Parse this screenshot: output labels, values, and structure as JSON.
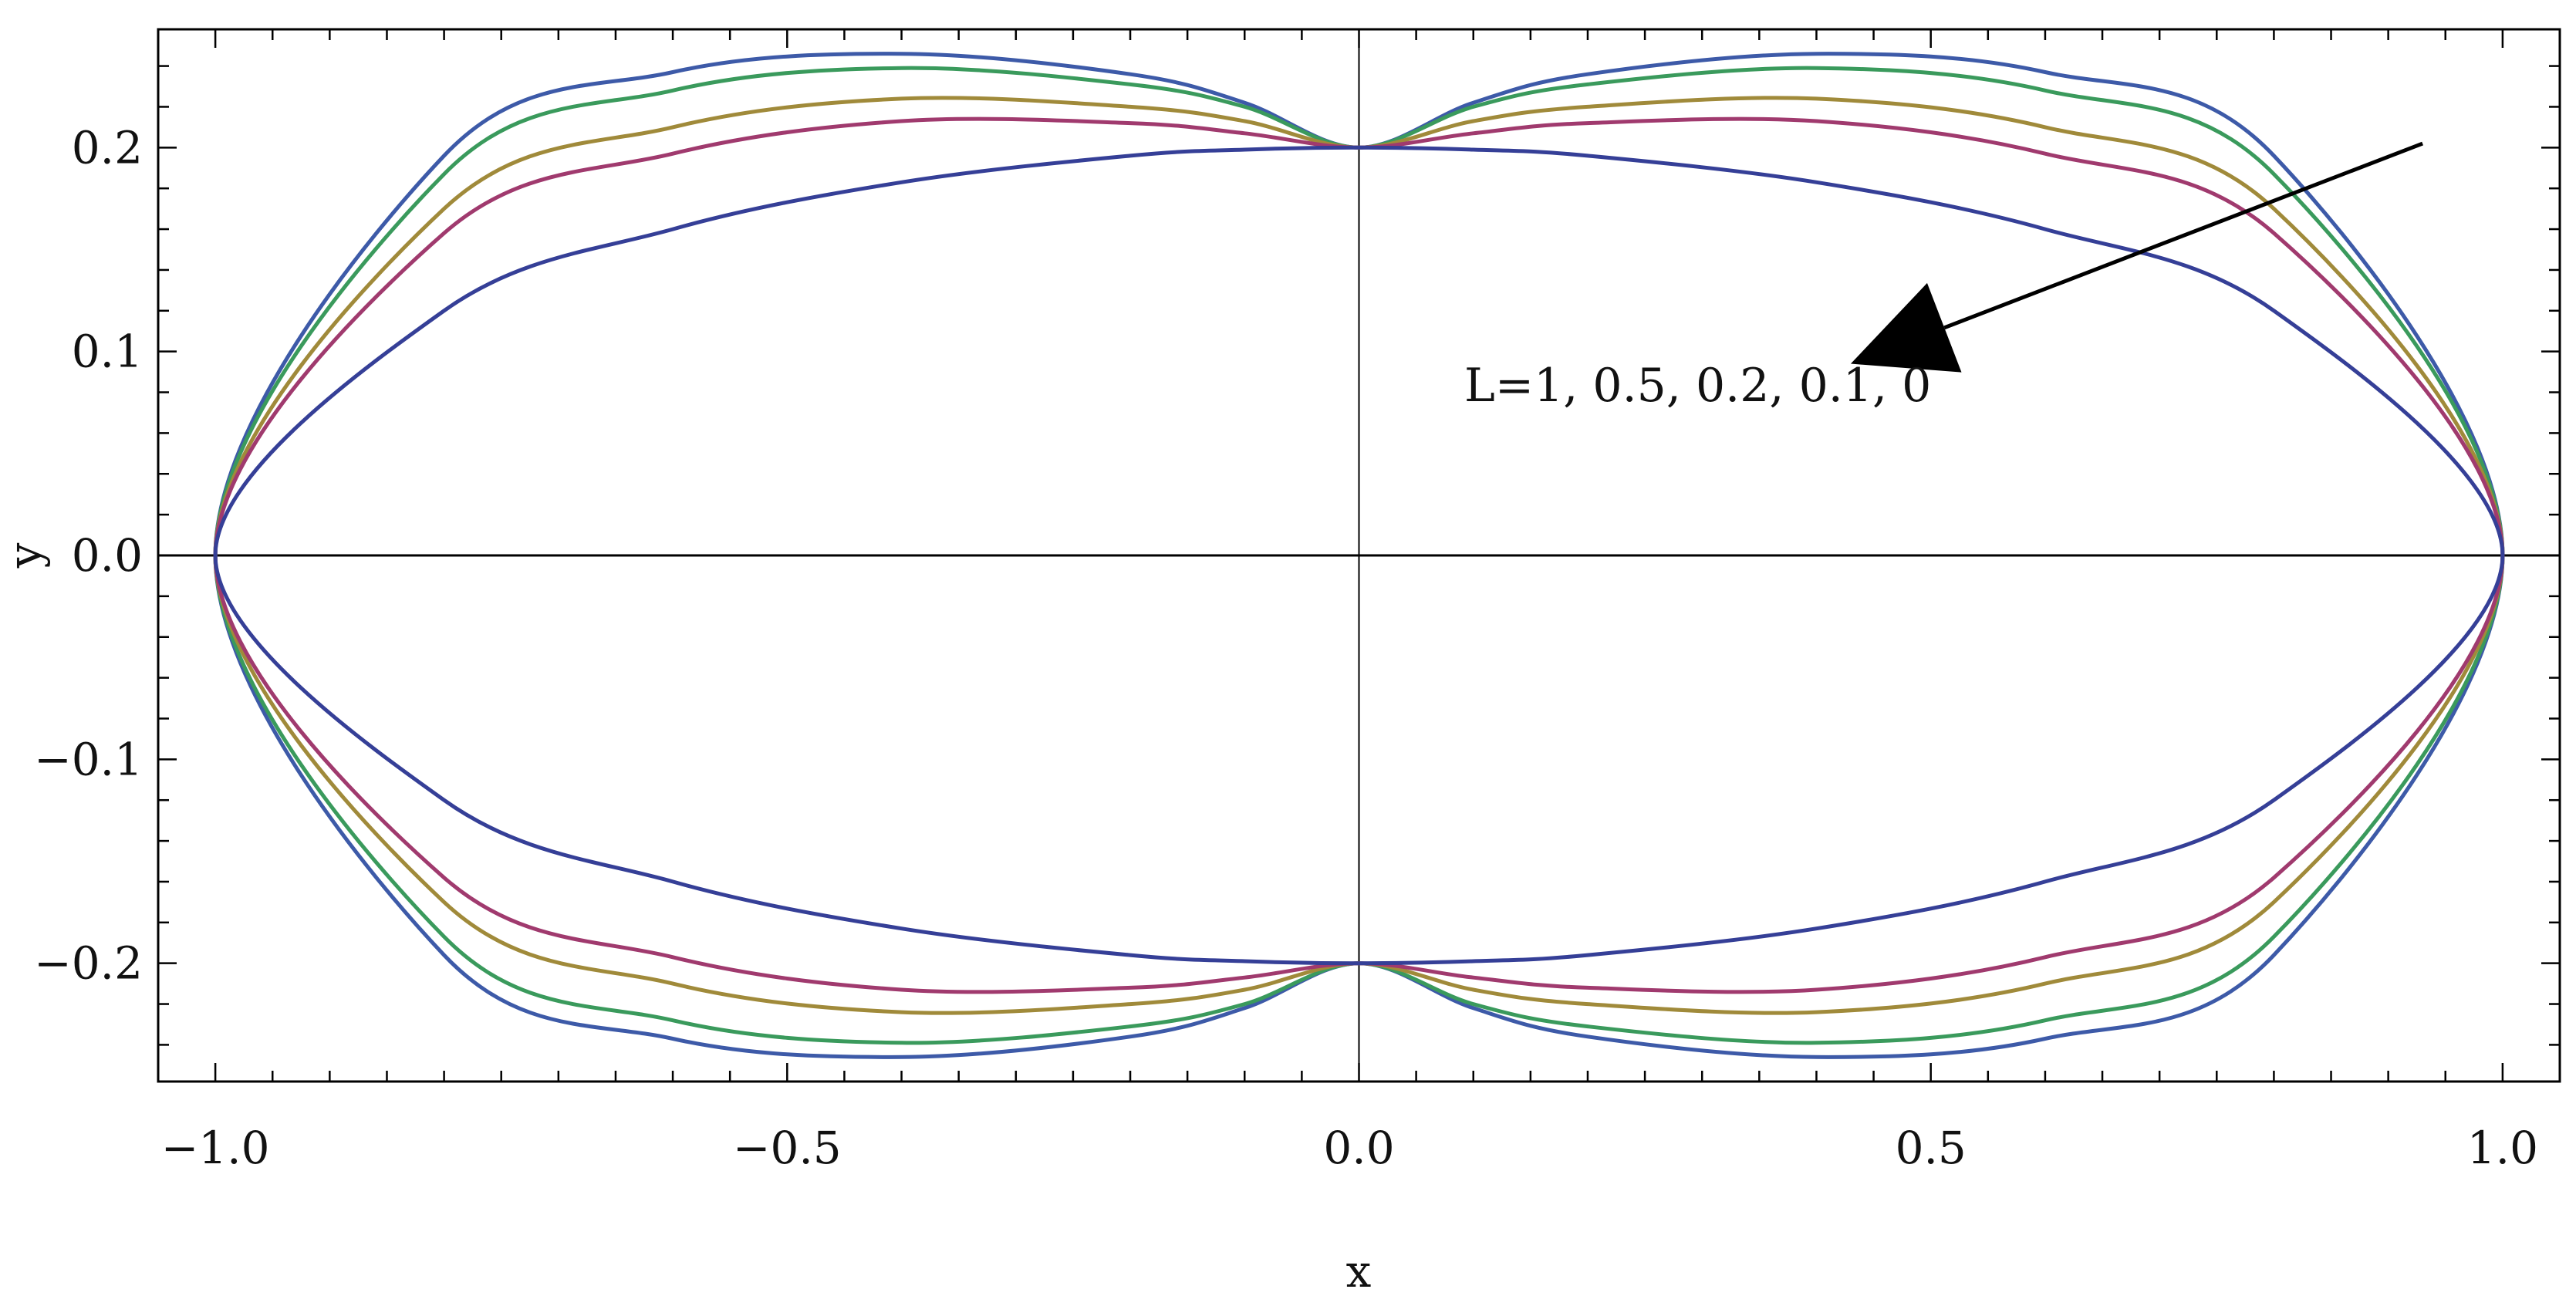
{
  "chart_data": {
    "type": "line",
    "title": "",
    "xlabel": "x",
    "ylabel": "y",
    "xlim": [
      -1.05,
      1.05
    ],
    "ylim": [
      -0.258,
      0.258
    ],
    "x_ticks": [
      -1.0,
      -0.5,
      0.0,
      0.5,
      1.0
    ],
    "x_tick_labels": [
      "−1.0",
      "−0.5",
      "0.0",
      "0.5",
      "1.0"
    ],
    "y_ticks": [
      -0.2,
      -0.1,
      0.0,
      0.1,
      0.2
    ],
    "y_tick_labels": [
      "−0.2",
      "−0.1",
      "0.0",
      "0.1",
      "0.2"
    ],
    "grid": false,
    "legend": "none",
    "annotation": {
      "text": "L=1, 0.5, 0.2, 0.1, 0",
      "arrow_from": [
        0.93,
        0.202
      ],
      "arrow_to": [
        0.43,
        0.094
      ]
    },
    "series": [
      {
        "color": "#3d5aa8",
        "closed": true,
        "points": [
          [
            -1.0,
            0.0
          ],
          [
            -0.8,
            0.196
          ],
          [
            -0.6,
            0.237
          ],
          [
            -0.4,
            0.246
          ],
          [
            -0.2,
            0.236
          ],
          [
            -0.1,
            0.222
          ],
          [
            0.0,
            0.2
          ],
          [
            0.1,
            0.222
          ],
          [
            0.2,
            0.236
          ],
          [
            0.4,
            0.246
          ],
          [
            0.6,
            0.237
          ],
          [
            0.8,
            0.196
          ],
          [
            1.0,
            0.0
          ],
          [
            0.8,
            -0.196
          ],
          [
            0.6,
            -0.237
          ],
          [
            0.4,
            -0.246
          ],
          [
            0.2,
            -0.236
          ],
          [
            0.1,
            -0.222
          ],
          [
            0.0,
            -0.2
          ],
          [
            -0.1,
            -0.222
          ],
          [
            -0.2,
            -0.236
          ],
          [
            -0.4,
            -0.246
          ],
          [
            -0.6,
            -0.237
          ],
          [
            -0.8,
            -0.196
          ]
        ]
      },
      {
        "color": "#3a9a5c",
        "closed": true,
        "points": [
          [
            -1.0,
            0.0
          ],
          [
            -0.8,
            0.187
          ],
          [
            -0.6,
            0.228
          ],
          [
            -0.4,
            0.239
          ],
          [
            -0.2,
            0.231
          ],
          [
            -0.1,
            0.22
          ],
          [
            0.0,
            0.2
          ],
          [
            0.1,
            0.22
          ],
          [
            0.2,
            0.231
          ],
          [
            0.4,
            0.239
          ],
          [
            0.6,
            0.228
          ],
          [
            0.8,
            0.187
          ],
          [
            1.0,
            0.0
          ],
          [
            0.8,
            -0.187
          ],
          [
            0.6,
            -0.228
          ],
          [
            0.4,
            -0.239
          ],
          [
            0.2,
            -0.231
          ],
          [
            0.1,
            -0.22
          ],
          [
            0.0,
            -0.2
          ],
          [
            -0.1,
            -0.22
          ],
          [
            -0.2,
            -0.231
          ],
          [
            -0.4,
            -0.239
          ],
          [
            -0.6,
            -0.228
          ],
          [
            -0.8,
            -0.187
          ]
        ]
      },
      {
        "color": "#a08a3a",
        "closed": true,
        "points": [
          [
            -1.0,
            0.0
          ],
          [
            -0.8,
            0.17
          ],
          [
            -0.6,
            0.21
          ],
          [
            -0.4,
            0.224
          ],
          [
            -0.2,
            0.22
          ],
          [
            -0.1,
            0.213
          ],
          [
            0.0,
            0.2
          ],
          [
            0.1,
            0.213
          ],
          [
            0.2,
            0.22
          ],
          [
            0.4,
            0.224
          ],
          [
            0.6,
            0.21
          ],
          [
            0.8,
            0.17
          ],
          [
            1.0,
            0.0
          ],
          [
            0.8,
            -0.17
          ],
          [
            0.6,
            -0.21
          ],
          [
            0.4,
            -0.224
          ],
          [
            0.2,
            -0.22
          ],
          [
            0.1,
            -0.213
          ],
          [
            0.0,
            -0.2
          ],
          [
            -0.1,
            -0.213
          ],
          [
            -0.2,
            -0.22
          ],
          [
            -0.4,
            -0.224
          ],
          [
            -0.6,
            -0.21
          ],
          [
            -0.8,
            -0.17
          ]
        ]
      },
      {
        "color": "#a03a6e",
        "closed": true,
        "points": [
          [
            -1.0,
            0.0
          ],
          [
            -0.8,
            0.158
          ],
          [
            -0.6,
            0.197
          ],
          [
            -0.4,
            0.213
          ],
          [
            -0.2,
            0.212
          ],
          [
            -0.1,
            0.207
          ],
          [
            0.0,
            0.2
          ],
          [
            0.1,
            0.207
          ],
          [
            0.2,
            0.212
          ],
          [
            0.4,
            0.213
          ],
          [
            0.6,
            0.197
          ],
          [
            0.8,
            0.158
          ],
          [
            1.0,
            0.0
          ],
          [
            0.8,
            -0.158
          ],
          [
            0.6,
            -0.197
          ],
          [
            0.4,
            -0.213
          ],
          [
            0.2,
            -0.212
          ],
          [
            0.1,
            -0.207
          ],
          [
            0.0,
            -0.2
          ],
          [
            -0.1,
            -0.207
          ],
          [
            -0.2,
            -0.212
          ],
          [
            -0.4,
            -0.213
          ],
          [
            -0.6,
            -0.197
          ],
          [
            -0.8,
            -0.158
          ]
        ]
      },
      {
        "color": "#353f97",
        "closed": true,
        "points": [
          [
            -1.0,
            0.0
          ],
          [
            -0.8,
            0.12
          ],
          [
            -0.6,
            0.16
          ],
          [
            -0.4,
            0.183
          ],
          [
            -0.2,
            0.196
          ],
          [
            -0.1,
            0.199
          ],
          [
            0.0,
            0.2
          ],
          [
            0.1,
            0.199
          ],
          [
            0.2,
            0.196
          ],
          [
            0.4,
            0.183
          ],
          [
            0.6,
            0.16
          ],
          [
            0.8,
            0.12
          ],
          [
            1.0,
            0.0
          ],
          [
            0.8,
            -0.12
          ],
          [
            0.6,
            -0.16
          ],
          [
            0.4,
            -0.183
          ],
          [
            0.2,
            -0.196
          ],
          [
            0.1,
            -0.199
          ],
          [
            0.0,
            -0.2
          ],
          [
            -0.1,
            -0.199
          ],
          [
            -0.2,
            -0.196
          ],
          [
            -0.4,
            -0.183
          ],
          [
            -0.6,
            -0.16
          ],
          [
            -0.8,
            -0.12
          ]
        ]
      }
    ]
  }
}
